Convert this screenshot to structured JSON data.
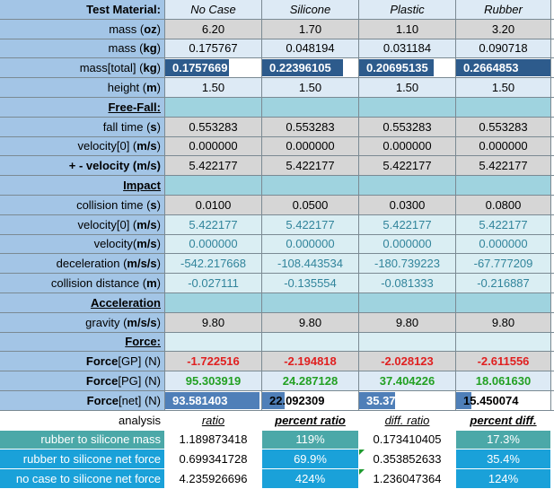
{
  "header": {
    "label": "Test Material:",
    "materials": [
      "No Case",
      "Silicone",
      "Plastic",
      "Rubber"
    ]
  },
  "rows": {
    "mass_oz": {
      "label_pre": "mass (",
      "unit": "oz",
      "label_post": ")",
      "values": [
        "6.20",
        "1.70",
        "1.10",
        "3.20"
      ]
    },
    "mass_kg": {
      "label_pre": "mass (",
      "unit": "kg",
      "label_post": ")",
      "values": [
        "0.175767",
        "0.048194",
        "0.031184",
        "0.090718"
      ]
    },
    "mass_total": {
      "label_pre": "mass[total] (",
      "unit": "kg",
      "label_post": ")",
      "values": [
        "0.1757669",
        "0.22396105",
        "0.20695135",
        "0.2664853"
      ]
    },
    "height": {
      "label_pre": "height (",
      "unit": "m",
      "label_post": ")",
      "values": [
        "1.50",
        "1.50",
        "1.50",
        "1.50"
      ]
    },
    "freefall": {
      "label": "Free-Fall:"
    },
    "fall_time": {
      "label_pre": "fall time (",
      "unit": "s",
      "label_post": ")",
      "values": [
        "0.553283",
        "0.553283",
        "0.553283",
        "0.553283"
      ]
    },
    "velocity0_ff": {
      "label_pre": "velocity[0] (",
      "unit": "m/s",
      "label_post": ")",
      "values": [
        "0.000000",
        "0.000000",
        "0.000000",
        "0.000000"
      ]
    },
    "pm_velocity": {
      "label_pre": "+ - velocity (",
      "unit": "m/s",
      "label_post": ")",
      "values": [
        "5.422177",
        "5.422177",
        "5.422177",
        "5.422177"
      ]
    },
    "impact": {
      "label": "Impact"
    },
    "collision_time": {
      "label_pre": "collision time (",
      "unit": "s",
      "label_post": ")",
      "values": [
        "0.0100",
        "0.0500",
        "0.0300",
        "0.0800"
      ]
    },
    "velocity0_im": {
      "label_pre": "velocity[0] (",
      "unit": "m/s",
      "label_post": ")",
      "values": [
        "5.422177",
        "5.422177",
        "5.422177",
        "5.422177"
      ]
    },
    "velocity_im": {
      "label_pre": "velocity(",
      "unit": "m/s",
      "label_post": ")",
      "values": [
        "0.000000",
        "0.000000",
        "0.000000",
        "0.000000"
      ]
    },
    "deceleration": {
      "label_pre": "deceleration (",
      "unit": "m/s/s",
      "label_post": ")",
      "values": [
        "-542.217668",
        "-108.443534",
        "-180.739223",
        "-67.777209"
      ]
    },
    "collision_distance": {
      "label_pre": "collision distance (",
      "unit": "m",
      "label_post": ")",
      "values": [
        "-0.027111",
        "-0.135554",
        "-0.081333",
        "-0.216887"
      ]
    },
    "acceleration": {
      "label": "Acceleration"
    },
    "gravity": {
      "label_pre": "gravity (",
      "unit": "m/s/s",
      "label_post": ")",
      "values": [
        "9.80",
        "9.80",
        "9.80",
        "9.80"
      ]
    },
    "force": {
      "label": "Force:"
    },
    "force_gp": {
      "label_pre": "Force",
      "unit": "[GP] (N)",
      "label_post": "",
      "values": [
        "-1.722516",
        "-2.194818",
        "-2.028123",
        "-2.611556"
      ]
    },
    "force_pg": {
      "label_pre": "Force",
      "unit": "[PG] (N)",
      "label_post": "",
      "values": [
        "95.303919",
        "24.287128",
        "37.404226",
        "18.061630"
      ]
    },
    "force_net": {
      "label_pre": "Force",
      "unit": "[net] (N)",
      "label_post": "",
      "values": [
        "93.581403",
        "22.092309",
        "35.376103",
        "15.450074"
      ]
    }
  },
  "bars": {
    "mass_total_fractions": [
      0.66,
      0.84,
      0.78,
      1.0
    ],
    "force_net_fractions": [
      0.98,
      0.23,
      0.37,
      0.16
    ],
    "mass_total_color": "#2d5b8c",
    "force_net_color": "#4f7fb8"
  },
  "analysis": {
    "label": "analysis",
    "headers": [
      "ratio",
      "percent ratio",
      "diff. ratio",
      "percent diff."
    ],
    "rows": [
      {
        "label": "rubber to silicone mass",
        "values": [
          "1.189873418",
          "119%",
          "0.173410405",
          "17.3%"
        ]
      },
      {
        "label": "rubber to silicone net force",
        "values": [
          "0.699341728",
          "69.9%",
          "0.353852633",
          "35.4%"
        ]
      },
      {
        "label": "no case to silicone net force",
        "values": [
          "4.235926696",
          "424%",
          "1.236047364",
          "124%"
        ]
      }
    ]
  }
}
